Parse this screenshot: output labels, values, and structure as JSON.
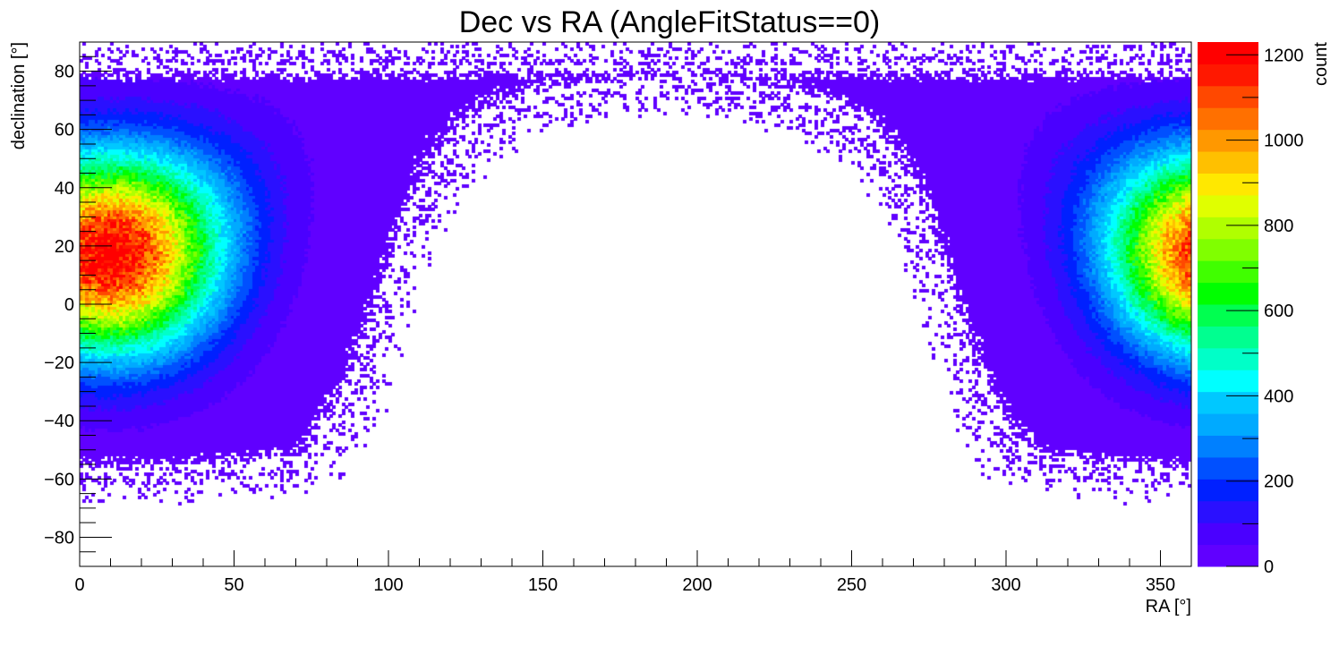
{
  "chart_data": {
    "type": "heatmap",
    "title": "Dec vs RA (AngleFitStatus==0)",
    "xlabel": "RA [°]",
    "ylabel": "declination [°]",
    "zlabel": "count",
    "xlim": [
      0,
      360
    ],
    "ylim": [
      -90,
      90
    ],
    "zlim": [
      0,
      1230
    ],
    "x_ticks": [
      0,
      50,
      100,
      150,
      200,
      250,
      300,
      350
    ],
    "y_ticks": [
      -80,
      -60,
      -40,
      -20,
      0,
      20,
      40,
      60,
      80
    ],
    "z_ticks": [
      0,
      200,
      400,
      600,
      800,
      1000,
      1200
    ],
    "x_tick_labels": [
      "0",
      "50",
      "100",
      "150",
      "200",
      "250",
      "300",
      "350"
    ],
    "y_tick_labels": [
      "−80",
      "−60",
      "−40",
      "−20",
      "0",
      "20",
      "40",
      "60",
      "80"
    ],
    "z_tick_labels": [
      "0",
      "200",
      "400",
      "600",
      "800",
      "1000",
      "1200"
    ],
    "grid": false,
    "colorbar": "right",
    "palette": [
      "#6000ff",
      "#4a00ff",
      "#2a10ff",
      "#0020ff",
      "#0050ff",
      "#0080ff",
      "#00aaff",
      "#00c8ff",
      "#00ffff",
      "#00ffc8",
      "#00ff90",
      "#00ff50",
      "#00ff00",
      "#40ff00",
      "#80ff00",
      "#b0ff00",
      "#e0ff00",
      "#ffe800",
      "#ffc000",
      "#ff9800",
      "#ff7000",
      "#ff4800",
      "#ff1800",
      "#ff0000"
    ],
    "hotspot": {
      "ra": 10,
      "dec": 17,
      "peak_count": 1230
    },
    "bins": {
      "nx": 360,
      "ny": 180
    }
  }
}
